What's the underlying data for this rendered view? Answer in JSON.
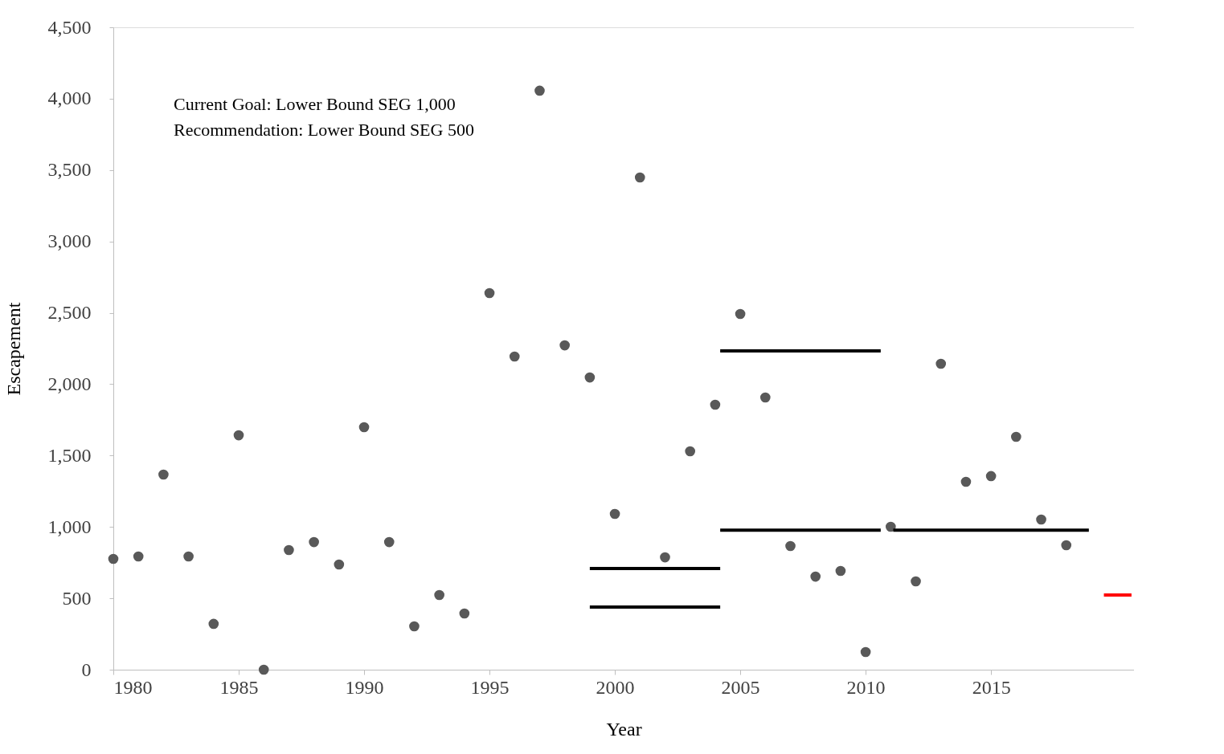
{
  "chart_data": {
    "type": "scatter",
    "xlabel": "Year",
    "ylabel": "Escapement",
    "x": [
      1980,
      1981,
      1982,
      1983,
      1984,
      1985,
      1986,
      1987,
      1988,
      1989,
      1990,
      1991,
      1992,
      1993,
      1994,
      1995,
      1996,
      1997,
      1998,
      1999,
      2000,
      2001,
      2002,
      2003,
      2004,
      2005,
      2006,
      2007,
      2008,
      2009,
      2010,
      2011,
      2012,
      2013,
      2014,
      2015,
      2016,
      2017,
      2018
    ],
    "series": [
      {
        "color": "#595959",
        "marker": "circle",
        "values": [
          776,
          793,
          1367,
          793,
          321,
          1642,
          0,
          838,
          894,
          737,
          1699,
          894,
          304,
          523,
          394,
          2638,
          2194,
          4056,
          2272,
          2047,
          1091,
          3448,
          787,
          1530,
          1856,
          2492,
          1907,
          866,
          652,
          692,
          124,
          1001,
          619,
          2143,
          1316,
          1356,
          1631,
          1052,
          872
        ]
      },
      {
        "type": "line",
        "color": "#000000",
        "x": [
          1999,
          2004.2
        ],
        "values": [
          709,
          709
        ]
      },
      {
        "type": "line",
        "color": "#000000",
        "x": [
          1999,
          2004.2
        ],
        "values": [
          439,
          439
        ]
      },
      {
        "type": "line",
        "color": "#000000",
        "x": [
          2004.2,
          2010.6
        ],
        "values": [
          2233,
          2233
        ]
      },
      {
        "type": "line",
        "color": "#000000",
        "x": [
          2004.2,
          2010.6
        ],
        "values": [
          978,
          978
        ]
      },
      {
        "type": "line",
        "color": "#000000",
        "x": [
          2011.1,
          2018.9
        ],
        "values": [
          978,
          978
        ]
      },
      {
        "type": "line",
        "color": "#ff0000",
        "x": [
          2019.5,
          2020.6
        ],
        "values": [
          523,
          523
        ]
      }
    ],
    "xlim": [
      1980,
      2020.7
    ],
    "xticks": [
      1980,
      1985,
      1990,
      1995,
      2000,
      2005,
      2010,
      2015
    ],
    "ylim": [
      0,
      4500
    ],
    "yticks": [
      0,
      500,
      {
        "value": 1000,
        "label": "1,000"
      },
      {
        "value": 1500,
        "label": "1,500"
      },
      {
        "value": 2000,
        "label": "2,000"
      },
      {
        "value": 2500,
        "label": "2,500"
      },
      {
        "value": 3000,
        "label": "3,000"
      },
      {
        "value": 3500,
        "label": "3,500"
      },
      {
        "value": 4000,
        "label": "4,000"
      },
      {
        "value": 4500,
        "label": "4,500"
      }
    ],
    "annotations": [
      "Current Goal:  Lower Bound SEG 1,000",
      "Recommendation: Lower Bound SEG 500"
    ],
    "grid": false
  }
}
